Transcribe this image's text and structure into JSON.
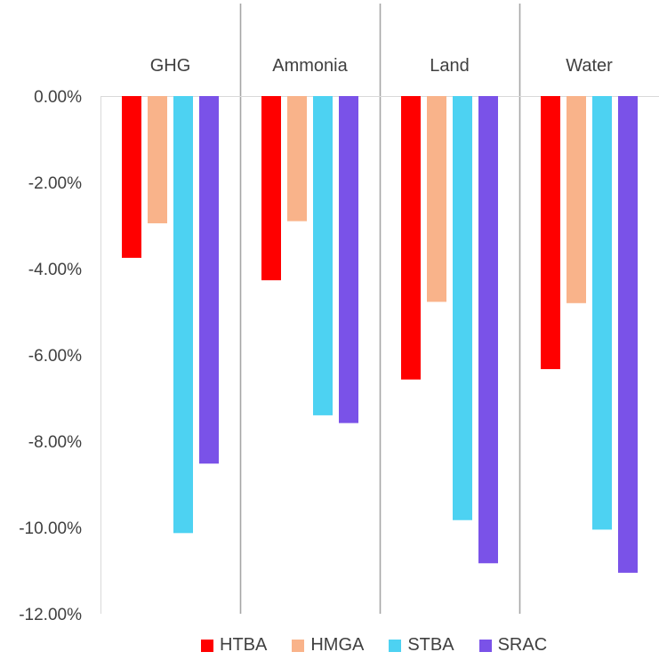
{
  "chart_data": {
    "type": "bar",
    "title": "",
    "xlabel": "",
    "ylabel": "",
    "categories": [
      "GHG",
      "Ammonia",
      "Land",
      "Water"
    ],
    "series": [
      {
        "name": "HTBA",
        "color": "#ff0000",
        "values": [
          -3.75,
          -4.27,
          -6.57,
          -6.33
        ]
      },
      {
        "name": "HMGA",
        "color": "#f9b38a",
        "values": [
          -2.95,
          -2.9,
          -4.77,
          -4.8
        ]
      },
      {
        "name": "STBA",
        "color": "#4dd2f2",
        "values": [
          -10.13,
          -7.4,
          -9.83,
          -10.05
        ]
      },
      {
        "name": "SRAC",
        "color": "#7a52e8",
        "values": [
          -8.52,
          -7.58,
          -10.83,
          -11.05
        ]
      }
    ],
    "ylim": [
      -12,
      0
    ],
    "yticks": [
      "0.00%",
      "-2.00%",
      "-4.00%",
      "-6.00%",
      "-8.00%",
      "-10.00%",
      "-12.00%"
    ],
    "grid": false,
    "legend_position": "bottom"
  }
}
